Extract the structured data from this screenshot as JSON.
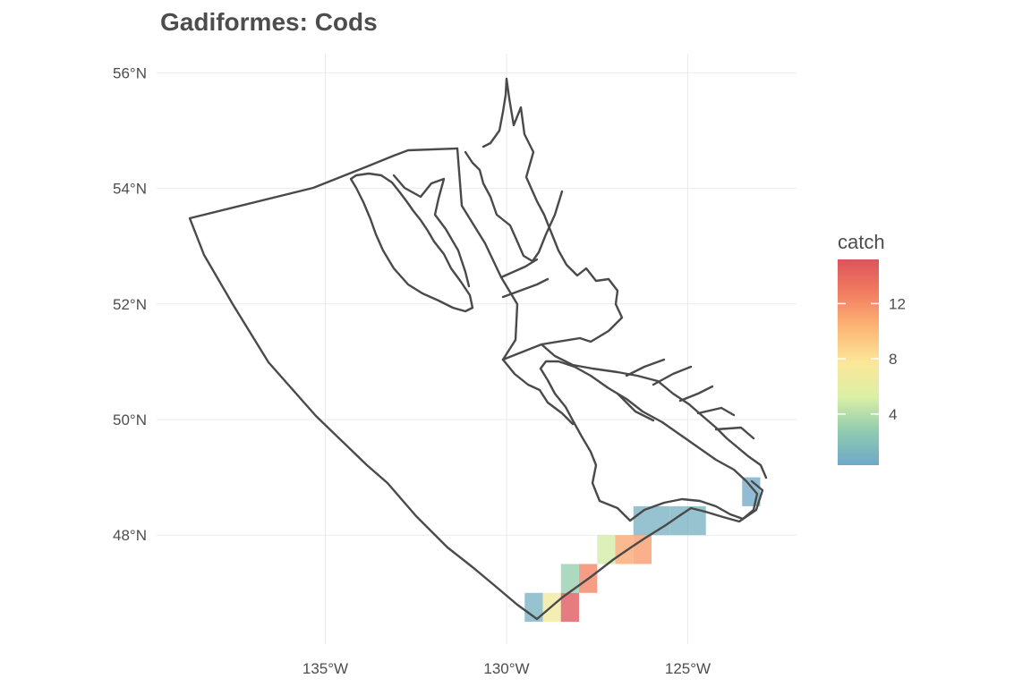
{
  "title": "Gadiformes: Cods",
  "chart_data": {
    "type": "heatmap",
    "map_kind": "choropleth grid over coastline (British Columbia)",
    "title": "Gadiformes: Cods",
    "xlabel": "",
    "ylabel": "",
    "x_ticks": [
      {
        "lon": -135,
        "label": "135°W"
      },
      {
        "lon": -130,
        "label": "130°W"
      },
      {
        "lon": -125,
        "label": "125°W"
      }
    ],
    "y_ticks": [
      {
        "lat": 56,
        "label": "56°N"
      },
      {
        "lat": 54,
        "label": "54°N"
      },
      {
        "lat": 52,
        "label": "52°N"
      },
      {
        "lat": 50,
        "label": "50°N"
      },
      {
        "lat": 48,
        "label": "48°N"
      }
    ],
    "grid": true,
    "cells": [
      {
        "lon": -129.25,
        "lat": 46.75,
        "catch": 1
      },
      {
        "lon": -128.75,
        "lat": 46.75,
        "catch": 7
      },
      {
        "lon": -128.25,
        "lat": 46.75,
        "catch": 15
      },
      {
        "lon": -128.25,
        "lat": 47.25,
        "catch": 3
      },
      {
        "lon": -127.75,
        "lat": 47.25,
        "catch": 12.5
      },
      {
        "lon": -127.25,
        "lat": 47.75,
        "catch": 5
      },
      {
        "lon": -126.75,
        "lat": 47.75,
        "catch": 11
      },
      {
        "lon": -126.25,
        "lat": 47.75,
        "catch": 11.5
      },
      {
        "lon": -126.25,
        "lat": 48.25,
        "catch": 1
      },
      {
        "lon": -125.75,
        "lat": 48.25,
        "catch": 1
      },
      {
        "lon": -125.25,
        "lat": 48.25,
        "catch": 1
      },
      {
        "lon": -124.75,
        "lat": 48.25,
        "catch": 1
      },
      {
        "lon": -123.25,
        "lat": 48.75,
        "catch": 0.5
      }
    ],
    "legend": {
      "title": "catch",
      "position": "right",
      "min": 0.3,
      "max": 15.2,
      "ticks": [
        4,
        8,
        12
      ],
      "tick_labels": [
        "4",
        "8",
        "12"
      ],
      "colors": [
        "#5e9ec2",
        "#84c6a7",
        "#d7ee9b",
        "#fbe48d",
        "#fdae66",
        "#f0704f",
        "#d94148"
      ]
    }
  }
}
